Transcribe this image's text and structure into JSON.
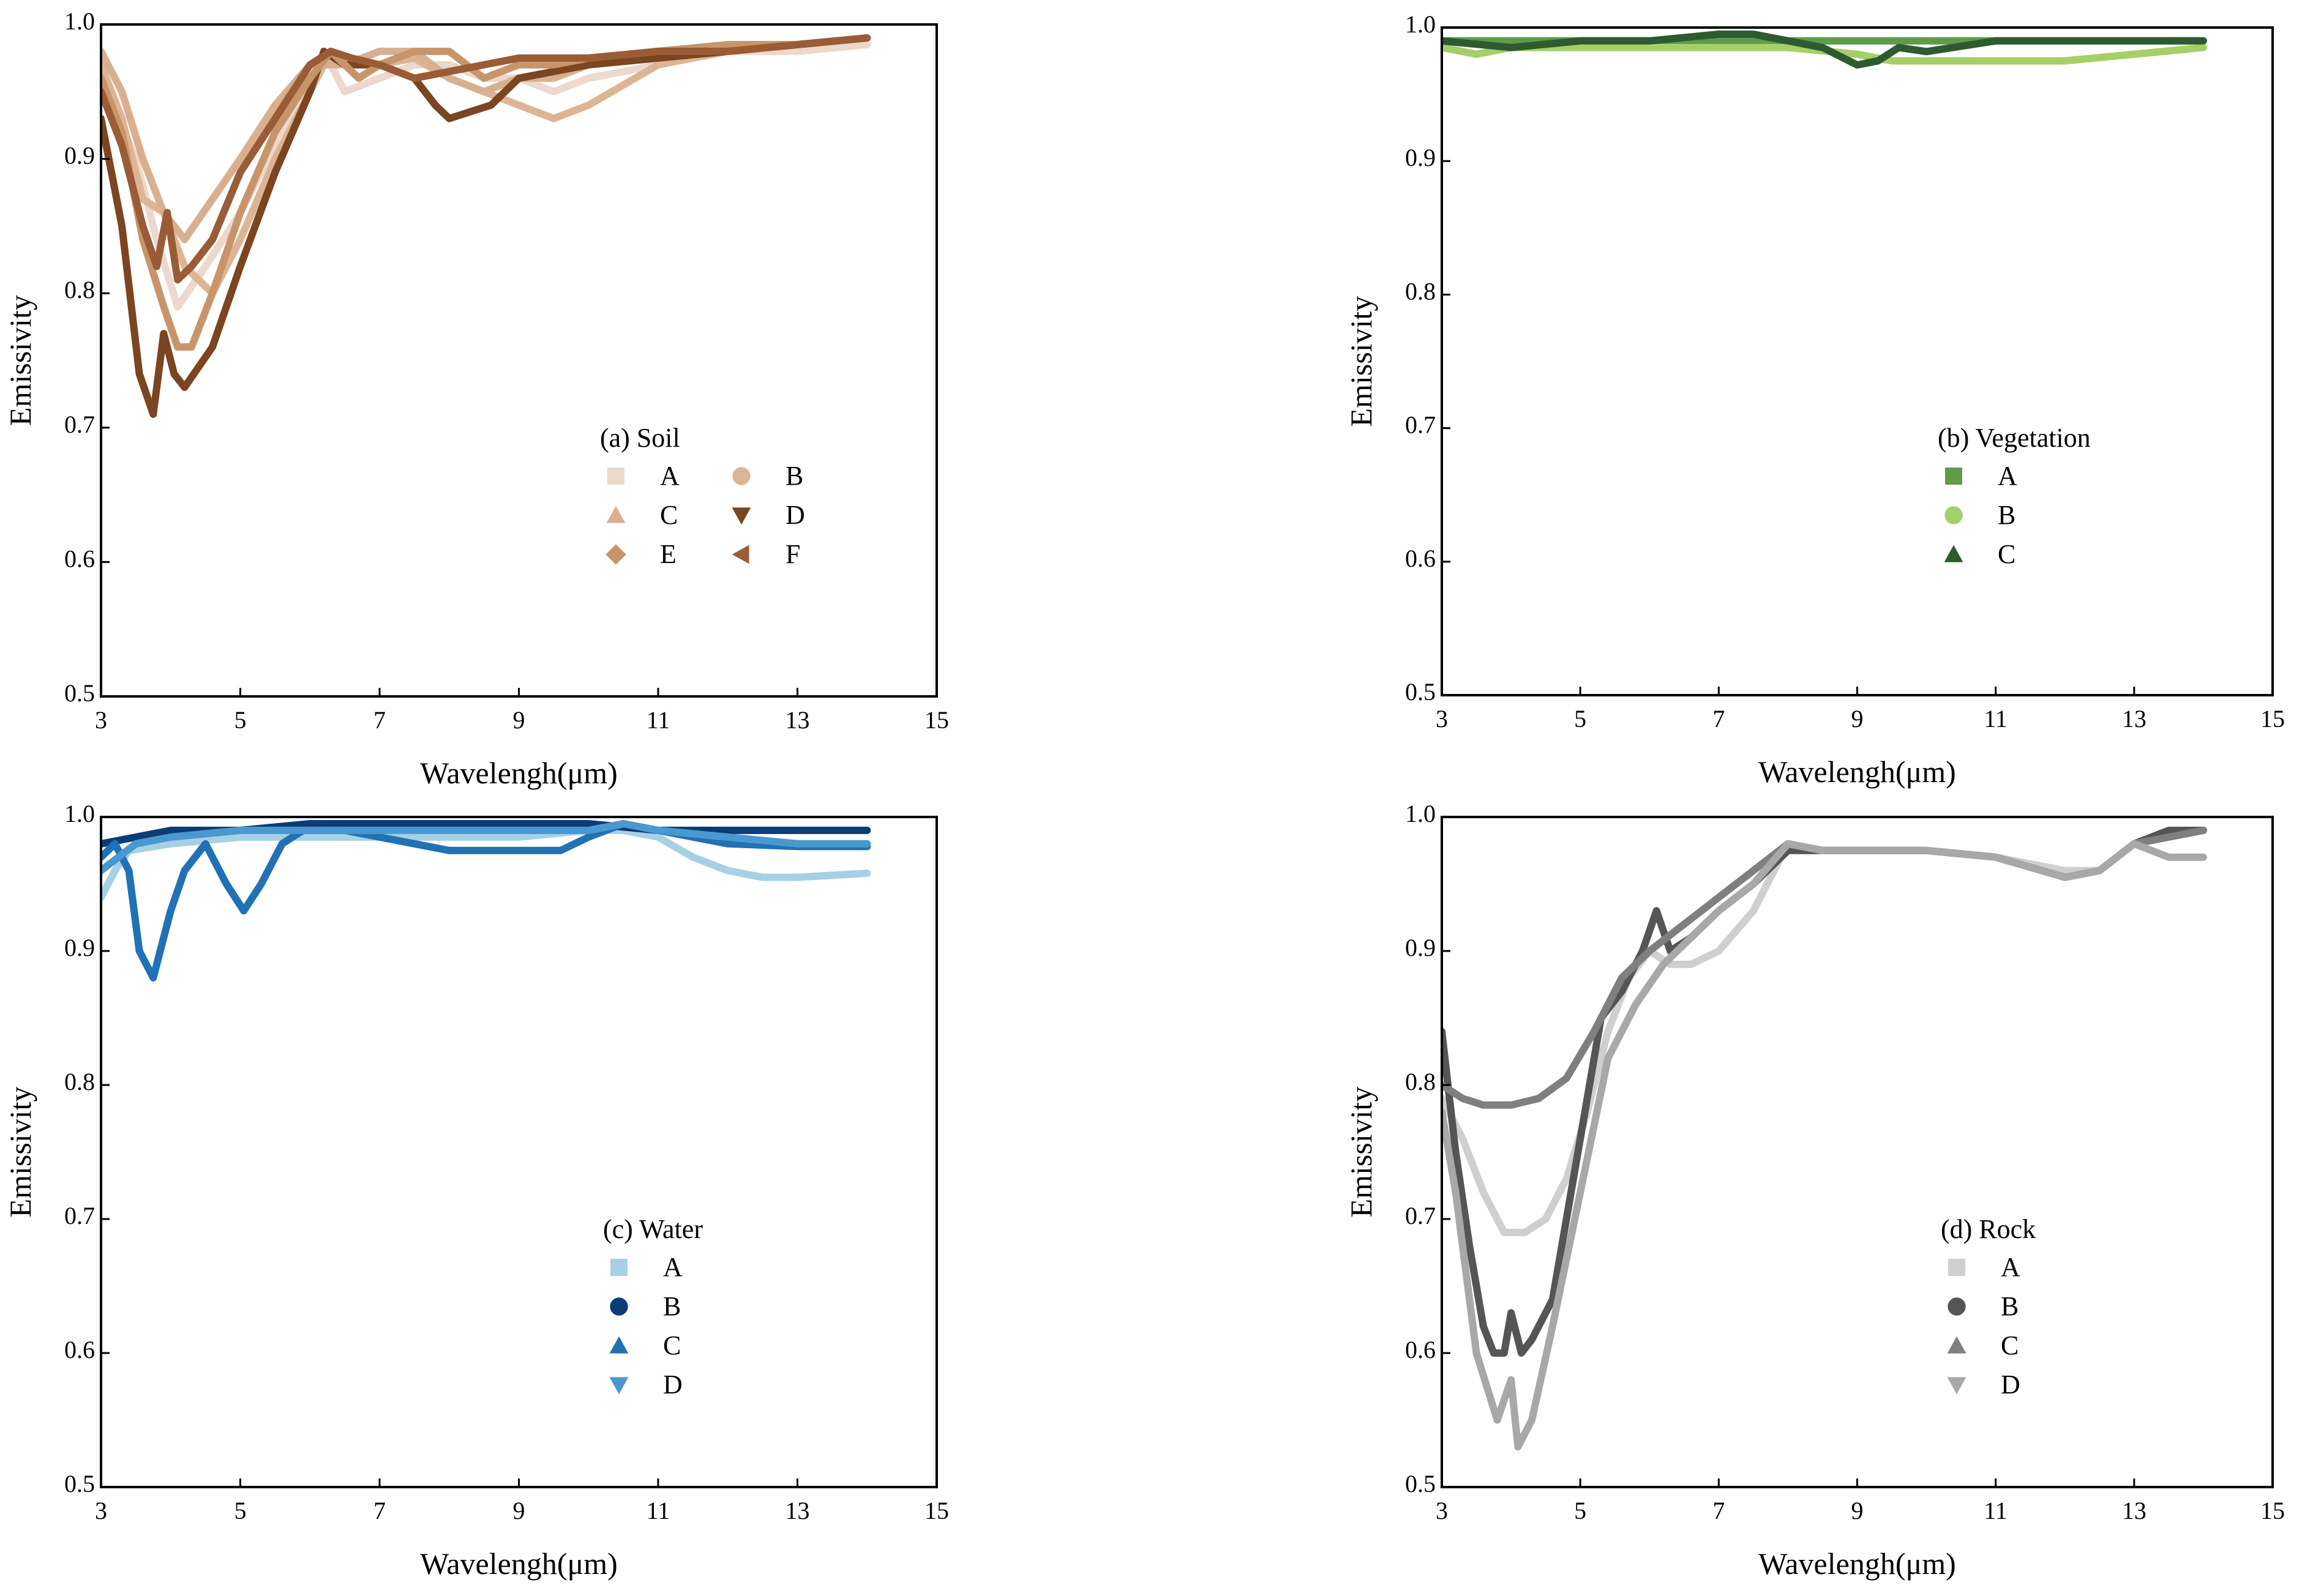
{
  "chart_data": [
    {
      "type": "line",
      "id": "soil",
      "legend_title": "(a) Soil",
      "xlabel": "Wavelengh(μm)",
      "ylabel": "Emissivity",
      "xlim": [
        3,
        15
      ],
      "ylim": [
        0.5,
        1.0
      ],
      "xticks": [
        3,
        5,
        7,
        9,
        11,
        13,
        15
      ],
      "yticks": [
        0.5,
        0.6,
        0.7,
        0.8,
        0.9,
        1.0
      ],
      "ytick_labels": [
        "0.5",
        "0.6",
        "0.7",
        "0.8",
        "0.9",
        "1.0"
      ],
      "legend_columns": 2,
      "series": [
        {
          "name": "A",
          "color": "#ecd8cc",
          "marker": "square",
          "x": [
            3,
            3.5,
            3.8,
            4.1,
            4.5,
            5,
            5.5,
            6,
            6.2,
            6.5,
            7,
            7.5,
            8,
            8.5,
            9,
            9.5,
            10,
            11,
            12,
            13,
            14
          ],
          "y": [
            0.96,
            0.9,
            0.84,
            0.79,
            0.82,
            0.86,
            0.91,
            0.95,
            0.98,
            0.95,
            0.96,
            0.97,
            0.97,
            0.96,
            0.96,
            0.95,
            0.96,
            0.97,
            0.98,
            0.98,
            0.985
          ]
        },
        {
          "name": "B",
          "color": "#ddb595",
          "marker": "circle",
          "x": [
            3,
            3.3,
            3.6,
            3.9,
            4.2,
            4.6,
            5,
            5.5,
            6,
            6.3,
            6.7,
            7,
            7.5,
            8,
            8.5,
            9,
            9.5,
            10,
            11,
            12,
            13,
            14
          ],
          "y": [
            0.97,
            0.93,
            0.87,
            0.86,
            0.82,
            0.8,
            0.84,
            0.9,
            0.95,
            0.98,
            0.96,
            0.97,
            0.975,
            0.96,
            0.95,
            0.94,
            0.93,
            0.94,
            0.97,
            0.98,
            0.985,
            0.99
          ]
        },
        {
          "name": "C",
          "color": "#d9b08f",
          "marker": "triangle-up",
          "x": [
            3,
            3.3,
            3.6,
            3.9,
            4.2,
            4.6,
            5,
            5.5,
            6,
            6.5,
            7,
            7.5,
            8,
            8.5,
            9,
            9.5,
            10,
            11,
            12,
            13,
            14
          ],
          "y": [
            0.98,
            0.95,
            0.9,
            0.86,
            0.84,
            0.87,
            0.9,
            0.94,
            0.97,
            0.97,
            0.98,
            0.98,
            0.96,
            0.95,
            0.96,
            0.96,
            0.97,
            0.975,
            0.98,
            0.985,
            0.99
          ]
        },
        {
          "name": "D",
          "color": "#7a4520",
          "marker": "triangle-down",
          "x": [
            3,
            3.3,
            3.55,
            3.75,
            3.9,
            4.05,
            4.2,
            4.6,
            5,
            5.5,
            6,
            6.2,
            6.5,
            7,
            7.5,
            7.8,
            8,
            8.3,
            8.6,
            9,
            9.5,
            10,
            11,
            12,
            13,
            14
          ],
          "y": [
            0.93,
            0.85,
            0.74,
            0.71,
            0.77,
            0.74,
            0.73,
            0.76,
            0.82,
            0.89,
            0.95,
            0.98,
            0.97,
            0.97,
            0.96,
            0.94,
            0.93,
            0.935,
            0.94,
            0.96,
            0.965,
            0.97,
            0.975,
            0.98,
            0.985,
            0.99
          ]
        },
        {
          "name": "E",
          "color": "#c8956b",
          "marker": "diamond",
          "x": [
            3,
            3.3,
            3.6,
            3.9,
            4.1,
            4.3,
            4.6,
            5,
            5.5,
            6,
            6.3,
            6.7,
            7,
            7.5,
            8,
            8.5,
            9,
            9.5,
            10,
            11,
            12,
            13,
            14
          ],
          "y": [
            0.96,
            0.92,
            0.84,
            0.79,
            0.76,
            0.76,
            0.8,
            0.86,
            0.92,
            0.96,
            0.98,
            0.96,
            0.97,
            0.98,
            0.98,
            0.96,
            0.97,
            0.97,
            0.975,
            0.98,
            0.985,
            0.985,
            0.99
          ]
        },
        {
          "name": "F",
          "color": "#9a5c36",
          "marker": "triangle-left",
          "x": [
            3,
            3.3,
            3.6,
            3.8,
            3.95,
            4.1,
            4.3,
            4.6,
            5,
            5.5,
            6,
            6.3,
            6.6,
            7,
            7.5,
            8,
            8.5,
            9,
            9.5,
            10,
            11,
            12,
            13,
            14
          ],
          "y": [
            0.95,
            0.91,
            0.85,
            0.82,
            0.86,
            0.81,
            0.82,
            0.84,
            0.89,
            0.93,
            0.97,
            0.98,
            0.975,
            0.97,
            0.96,
            0.965,
            0.97,
            0.975,
            0.975,
            0.975,
            0.98,
            0.98,
            0.985,
            0.99
          ]
        }
      ]
    },
    {
      "type": "line",
      "id": "vegetation",
      "legend_title": "(b) Vegetation",
      "xlabel": "Wavelengh(μm)",
      "ylabel": "Emissivity",
      "xlim": [
        3,
        15
      ],
      "ylim": [
        0.5,
        1.0
      ],
      "xticks": [
        3,
        5,
        7,
        9,
        11,
        13,
        15
      ],
      "yticks": [
        0.5,
        0.6,
        0.7,
        0.8,
        0.9,
        1.0
      ],
      "ytick_labels": [
        "0.5",
        "0.6",
        "0.7",
        "0.8",
        "0.9",
        "1.0"
      ],
      "legend_columns": 1,
      "series": [
        {
          "name": "A",
          "color": "#5f9b4a",
          "marker": "square",
          "x": [
            3,
            4,
            5,
            6,
            7,
            8,
            9,
            10,
            11,
            12,
            13,
            14
          ],
          "y": [
            0.99,
            0.99,
            0.99,
            0.99,
            0.99,
            0.99,
            0.99,
            0.99,
            0.99,
            0.99,
            0.99,
            0.99
          ]
        },
        {
          "name": "B",
          "color": "#a5cf68",
          "marker": "circle",
          "x": [
            3,
            3.5,
            4,
            5,
            6,
            7,
            8,
            9,
            9.5,
            10,
            11,
            12,
            13,
            14
          ],
          "y": [
            0.985,
            0.98,
            0.985,
            0.985,
            0.985,
            0.985,
            0.985,
            0.98,
            0.975,
            0.975,
            0.975,
            0.975,
            0.98,
            0.985
          ]
        },
        {
          "name": "C",
          "color": "#2e5a30",
          "marker": "triangle-up",
          "x": [
            3,
            4,
            5,
            6,
            7,
            7.5,
            8,
            8.5,
            9,
            9.3,
            9.6,
            10,
            11,
            12,
            13,
            14
          ],
          "y": [
            0.99,
            0.985,
            0.99,
            0.99,
            0.995,
            0.995,
            0.99,
            0.985,
            0.972,
            0.975,
            0.985,
            0.982,
            0.99,
            0.99,
            0.99,
            0.99
          ]
        }
      ]
    },
    {
      "type": "line",
      "id": "water",
      "legend_title": "(c) Water",
      "xlabel": "Wavelengh(μm)",
      "ylabel": "Emissivity",
      "xlim": [
        3,
        15
      ],
      "ylim": [
        0.5,
        1.0
      ],
      "xticks": [
        3,
        5,
        7,
        9,
        11,
        13,
        15
      ],
      "yticks": [
        0.5,
        0.6,
        0.7,
        0.8,
        0.9,
        1.0
      ],
      "ytick_labels": [
        "0.5",
        "0.6",
        "0.7",
        "0.8",
        "0.9",
        "1.0"
      ],
      "legend_columns": 1,
      "series": [
        {
          "name": "A",
          "color": "#a6d0e4",
          "marker": "square",
          "x": [
            3,
            3.2,
            3.4,
            4,
            5,
            6,
            7,
            8,
            9,
            10,
            10.5,
            11,
            11.5,
            12,
            12.5,
            13,
            14
          ],
          "y": [
            0.94,
            0.96,
            0.975,
            0.98,
            0.985,
            0.985,
            0.985,
            0.985,
            0.985,
            0.99,
            0.99,
            0.985,
            0.97,
            0.96,
            0.955,
            0.955,
            0.958
          ]
        },
        {
          "name": "B",
          "color": "#0b3c78",
          "marker": "circle",
          "x": [
            3,
            3.5,
            4,
            5,
            6,
            7,
            8,
            9,
            10,
            11,
            12,
            13,
            14
          ],
          "y": [
            0.98,
            0.985,
            0.99,
            0.99,
            0.995,
            0.995,
            0.995,
            0.995,
            0.995,
            0.99,
            0.99,
            0.99,
            0.99
          ]
        },
        {
          "name": "C",
          "color": "#2171b5",
          "marker": "triangle-up",
          "x": [
            3,
            3.2,
            3.4,
            3.55,
            3.75,
            4,
            4.2,
            4.5,
            4.8,
            5.05,
            5.3,
            5.6,
            5.9,
            6.5,
            7,
            7.5,
            8,
            8.5,
            9,
            9.3,
            9.6,
            10,
            10.5,
            11,
            11.5,
            12,
            13,
            14
          ],
          "y": [
            0.97,
            0.98,
            0.96,
            0.9,
            0.88,
            0.93,
            0.96,
            0.98,
            0.95,
            0.93,
            0.95,
            0.98,
            0.99,
            0.99,
            0.985,
            0.98,
            0.975,
            0.975,
            0.975,
            0.975,
            0.975,
            0.985,
            0.995,
            0.99,
            0.985,
            0.98,
            0.978,
            0.978
          ]
        },
        {
          "name": "D",
          "color": "#4a98d0",
          "marker": "triangle-down",
          "x": [
            3,
            3.5,
            4,
            5,
            6,
            7,
            8,
            9,
            10,
            10.5,
            11,
            12,
            13,
            14
          ],
          "y": [
            0.96,
            0.98,
            0.985,
            0.99,
            0.99,
            0.99,
            0.99,
            0.99,
            0.99,
            0.995,
            0.99,
            0.985,
            0.98,
            0.98
          ]
        }
      ]
    },
    {
      "type": "line",
      "id": "rock",
      "legend_title": "(d) Rock",
      "xlabel": "Wavelengh(μm)",
      "ylabel": "Emissivity",
      "xlim": [
        3,
        15
      ],
      "ylim": [
        0.5,
        1.0
      ],
      "xticks": [
        3,
        5,
        7,
        9,
        11,
        13,
        15
      ],
      "yticks": [
        0.5,
        0.6,
        0.7,
        0.8,
        0.9,
        1.0
      ],
      "ytick_labels": [
        "0.5",
        "0.6",
        "0.7",
        "0.8",
        "0.9",
        "1.0"
      ],
      "legend_columns": 1,
      "series": [
        {
          "name": "A",
          "color": "#cfcfcf",
          "marker": "square",
          "x": [
            3,
            3.3,
            3.6,
            3.9,
            4.2,
            4.5,
            4.8,
            5.1,
            5.4,
            5.7,
            6,
            6.3,
            6.6,
            7,
            7.5,
            8,
            8.5,
            9,
            10,
            11,
            12,
            12.5,
            13,
            13.5,
            14
          ],
          "y": [
            0.79,
            0.76,
            0.72,
            0.69,
            0.69,
            0.7,
            0.73,
            0.78,
            0.84,
            0.88,
            0.9,
            0.89,
            0.89,
            0.9,
            0.93,
            0.98,
            0.975,
            0.975,
            0.975,
            0.97,
            0.96,
            0.96,
            0.98,
            0.985,
            0.99
          ]
        },
        {
          "name": "B",
          "color": "#555555",
          "marker": "circle",
          "x": [
            3,
            3.2,
            3.4,
            3.6,
            3.75,
            3.9,
            4.0,
            4.15,
            4.3,
            4.6,
            5,
            5.3,
            5.6,
            5.9,
            6.1,
            6.3,
            6.6,
            7,
            7.5,
            8,
            8.5,
            9,
            10,
            11,
            12,
            12.5,
            13,
            13.5,
            14
          ],
          "y": [
            0.84,
            0.75,
            0.68,
            0.62,
            0.6,
            0.6,
            0.63,
            0.6,
            0.61,
            0.64,
            0.76,
            0.85,
            0.87,
            0.9,
            0.93,
            0.9,
            0.91,
            0.93,
            0.95,
            0.975,
            0.975,
            0.975,
            0.975,
            0.97,
            0.955,
            0.96,
            0.98,
            0.99,
            0.99
          ]
        },
        {
          "name": "C",
          "color": "#7f7f7f",
          "marker": "triangle-up",
          "x": [
            3,
            3.3,
            3.6,
            4,
            4.4,
            4.8,
            5.2,
            5.6,
            6,
            6.5,
            7,
            7.5,
            8,
            8.5,
            9,
            10,
            11,
            12,
            12.5,
            13,
            13.5,
            14
          ],
          "y": [
            0.8,
            0.79,
            0.785,
            0.785,
            0.79,
            0.805,
            0.84,
            0.88,
            0.9,
            0.92,
            0.94,
            0.96,
            0.98,
            0.975,
            0.975,
            0.975,
            0.97,
            0.955,
            0.96,
            0.98,
            0.985,
            0.99
          ]
        },
        {
          "name": "D",
          "color": "#a8a8a8",
          "marker": "triangle-down",
          "x": [
            3,
            3.2,
            3.5,
            3.8,
            4.0,
            4.1,
            4.3,
            4.6,
            5,
            5.4,
            5.8,
            6.2,
            6.6,
            7,
            7.5,
            8,
            8.5,
            9,
            10,
            11,
            12,
            12.5,
            13,
            13.5,
            14
          ],
          "y": [
            0.78,
            0.72,
            0.6,
            0.55,
            0.58,
            0.53,
            0.55,
            0.62,
            0.72,
            0.82,
            0.86,
            0.89,
            0.91,
            0.93,
            0.95,
            0.98,
            0.975,
            0.975,
            0.975,
            0.97,
            0.955,
            0.96,
            0.98,
            0.97,
            0.97
          ]
        }
      ]
    }
  ]
}
